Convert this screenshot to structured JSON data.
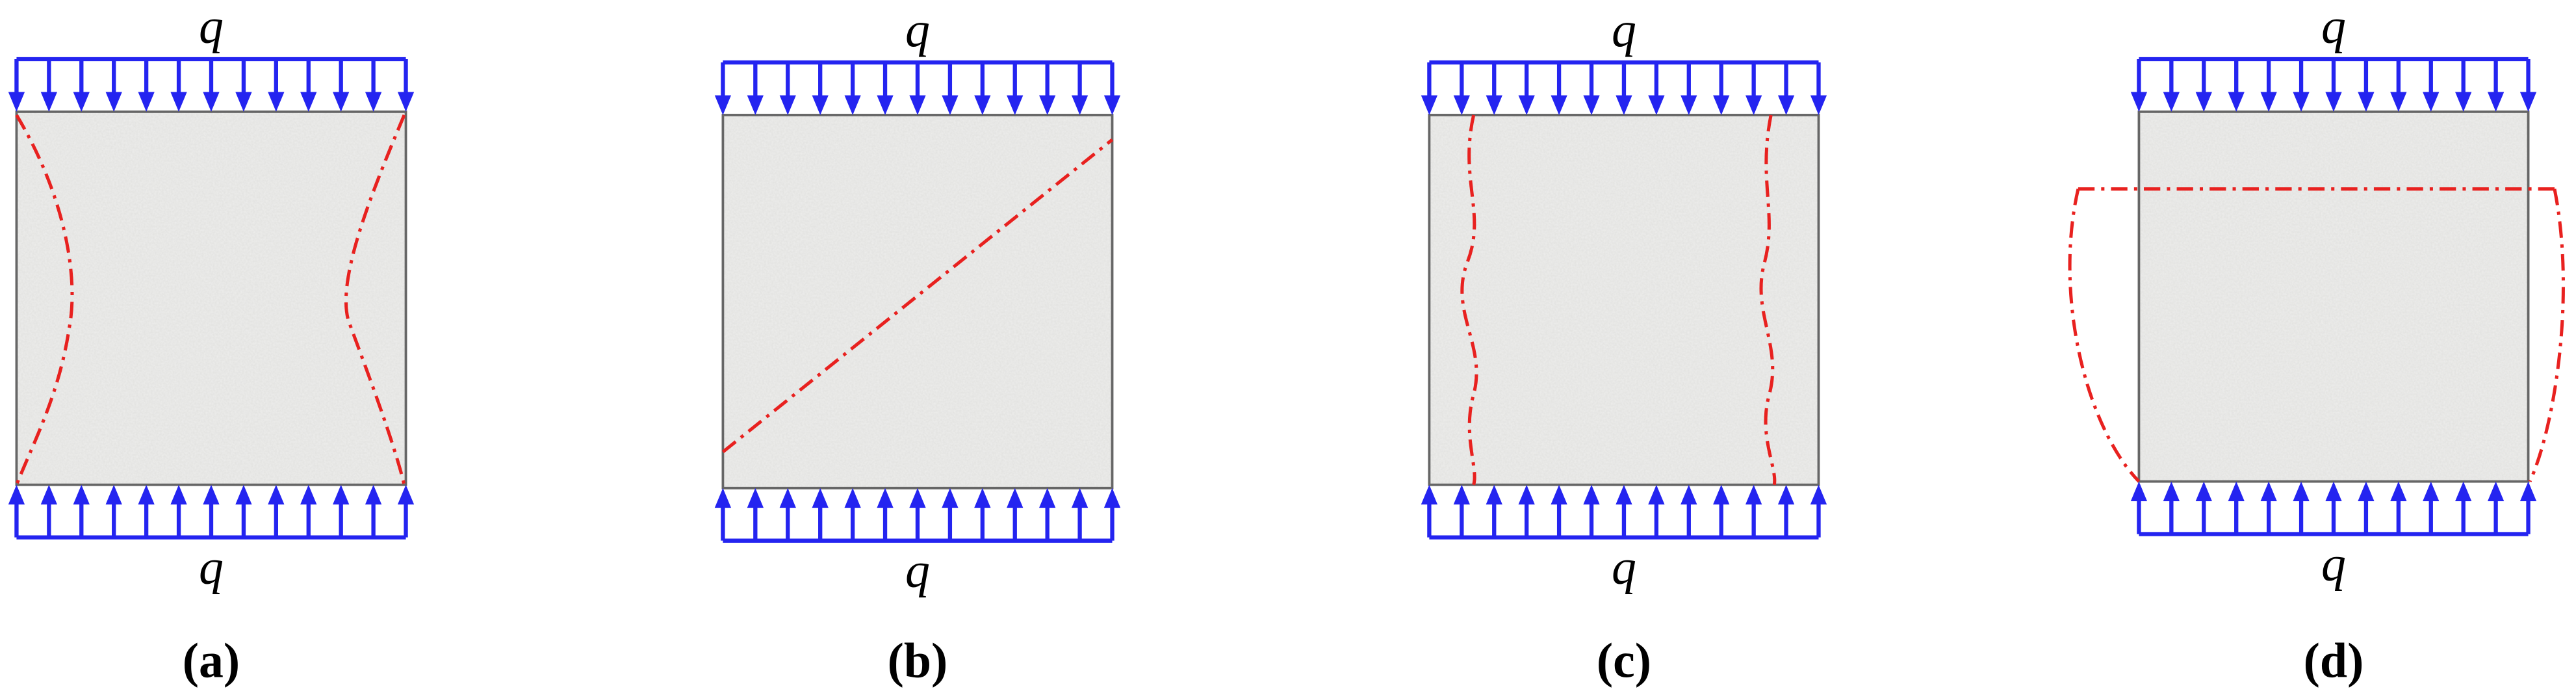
{
  "panels": [
    {
      "top_load": "q",
      "bottom_load": "q",
      "caption": "(a)"
    },
    {
      "top_load": "q",
      "bottom_load": "q",
      "caption": "(b)"
    },
    {
      "top_load": "q",
      "bottom_load": "q",
      "caption": "(c)"
    },
    {
      "top_load": "q",
      "bottom_load": "q",
      "caption": "(d)"
    }
  ]
}
